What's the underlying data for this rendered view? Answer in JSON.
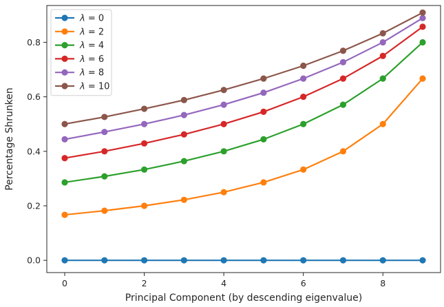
{
  "chart_data": {
    "type": "line",
    "xlabel": "Principal Component (by descending eigenvalue)",
    "ylabel": "Percentage Shrunken",
    "xlim": [
      -0.45,
      9.45
    ],
    "ylim": [
      -0.045,
      0.935
    ],
    "xticks": [
      0,
      2,
      4,
      6,
      8
    ],
    "xtick_labels": [
      "0",
      "2",
      "4",
      "6",
      "8"
    ],
    "yticks": [
      0.0,
      0.2,
      0.4,
      0.6,
      0.8
    ],
    "ytick_labels": [
      "0.0",
      "0.2",
      "0.4",
      "0.6",
      "0.8"
    ],
    "grid": false,
    "legend_position": "top-left",
    "x": [
      0,
      1,
      2,
      3,
      4,
      5,
      6,
      7,
      8,
      9
    ],
    "series": [
      {
        "name": "λ = 0",
        "legend_var": "λ",
        "legend_rest": " = 0",
        "color": "#1f77b4",
        "values": [
          0,
          0,
          0,
          0,
          0,
          0,
          0,
          0,
          0,
          0
        ]
      },
      {
        "name": "λ = 2",
        "legend_var": "λ",
        "legend_rest": " = 2",
        "color": "#ff7f0e",
        "values": [
          0.167,
          0.182,
          0.2,
          0.222,
          0.25,
          0.286,
          0.333,
          0.4,
          0.5,
          0.667
        ]
      },
      {
        "name": "λ = 4",
        "legend_var": "λ",
        "legend_rest": " = 4",
        "color": "#2ca02c",
        "values": [
          0.286,
          0.308,
          0.333,
          0.364,
          0.4,
          0.444,
          0.5,
          0.571,
          0.667,
          0.8
        ]
      },
      {
        "name": "λ = 6",
        "legend_var": "λ",
        "legend_rest": " = 6",
        "color": "#d62728",
        "values": [
          0.375,
          0.4,
          0.429,
          0.462,
          0.5,
          0.545,
          0.6,
          0.667,
          0.75,
          0.857
        ]
      },
      {
        "name": "λ = 8",
        "legend_var": "λ",
        "legend_rest": " = 8",
        "color": "#9467bd",
        "values": [
          0.444,
          0.471,
          0.5,
          0.533,
          0.571,
          0.615,
          0.667,
          0.727,
          0.8,
          0.889
        ]
      },
      {
        "name": "λ = 10",
        "legend_var": "λ",
        "legend_rest": " = 10",
        "color": "#8c564b",
        "values": [
          0.5,
          0.526,
          0.556,
          0.588,
          0.625,
          0.667,
          0.714,
          0.769,
          0.833,
          0.909
        ]
      }
    ]
  }
}
